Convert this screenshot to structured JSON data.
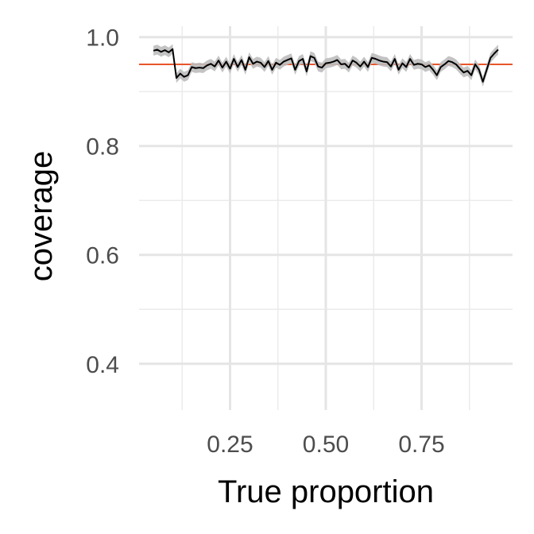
{
  "chart_data": {
    "type": "line",
    "title": "",
    "xlabel": "True proportion",
    "ylabel": "coverage",
    "xlim": [
      0.0125,
      0.9875
    ],
    "ylim": [
      0.315,
      1.02
    ],
    "x_ticks": [
      0.25,
      0.5,
      0.75
    ],
    "x_tick_labels": [
      "0.25",
      "0.50",
      "0.75"
    ],
    "x_minor_ticks": [
      0.125,
      0.375,
      0.625,
      0.875
    ],
    "y_ticks": [
      0.4,
      0.6,
      0.8,
      1.0
    ],
    "y_tick_labels": [
      "0.4",
      "0.6",
      "0.8",
      "1.0"
    ],
    "y_minor_ticks": [
      0.5,
      0.7,
      0.9
    ],
    "grid": true,
    "reference_line": {
      "y": 0.95,
      "color": "#e8562a"
    },
    "line_color": "#000000",
    "band_color": "#bdbdbd",
    "band_halfwidth": 0.009,
    "series": [
      {
        "x": [
          0.05,
          0.06,
          0.07,
          0.08,
          0.09,
          0.1,
          0.11,
          0.12,
          0.13,
          0.14,
          0.15,
          0.16,
          0.17,
          0.18,
          0.19,
          0.2,
          0.21,
          0.22,
          0.23,
          0.24,
          0.25,
          0.26,
          0.27,
          0.28,
          0.29,
          0.3,
          0.31,
          0.32,
          0.33,
          0.34,
          0.35,
          0.36,
          0.37,
          0.38,
          0.39,
          0.4,
          0.41,
          0.42,
          0.43,
          0.44,
          0.45,
          0.46,
          0.47,
          0.48,
          0.49,
          0.5,
          0.51,
          0.52,
          0.53,
          0.54,
          0.55,
          0.56,
          0.57,
          0.58,
          0.59,
          0.6,
          0.61,
          0.62,
          0.63,
          0.64,
          0.65,
          0.66,
          0.67,
          0.68,
          0.69,
          0.7,
          0.71,
          0.72,
          0.73,
          0.74,
          0.75,
          0.76,
          0.77,
          0.78,
          0.79,
          0.8,
          0.81,
          0.82,
          0.83,
          0.84,
          0.85,
          0.86,
          0.87,
          0.88,
          0.89,
          0.9,
          0.91,
          0.92,
          0.93,
          0.94,
          0.95
        ],
        "y": [
          0.975,
          0.977,
          0.973,
          0.976,
          0.972,
          0.978,
          0.925,
          0.933,
          0.927,
          0.93,
          0.945,
          0.943,
          0.944,
          0.943,
          0.948,
          0.951,
          0.946,
          0.957,
          0.944,
          0.955,
          0.942,
          0.96,
          0.945,
          0.958,
          0.94,
          0.963,
          0.951,
          0.955,
          0.953,
          0.945,
          0.956,
          0.94,
          0.953,
          0.949,
          0.955,
          0.958,
          0.961,
          0.94,
          0.956,
          0.96,
          0.937,
          0.965,
          0.962,
          0.946,
          0.944,
          0.952,
          0.953,
          0.955,
          0.958,
          0.95,
          0.951,
          0.944,
          0.957,
          0.953,
          0.946,
          0.955,
          0.945,
          0.962,
          0.96,
          0.957,
          0.955,
          0.954,
          0.946,
          0.96,
          0.94,
          0.952,
          0.945,
          0.96,
          0.949,
          0.951,
          0.95,
          0.945,
          0.948,
          0.94,
          0.93,
          0.945,
          0.95,
          0.956,
          0.954,
          0.95,
          0.942,
          0.935,
          0.938,
          0.93,
          0.95,
          0.94,
          0.918,
          0.94,
          0.962,
          0.97,
          0.977
        ]
      }
    ]
  }
}
